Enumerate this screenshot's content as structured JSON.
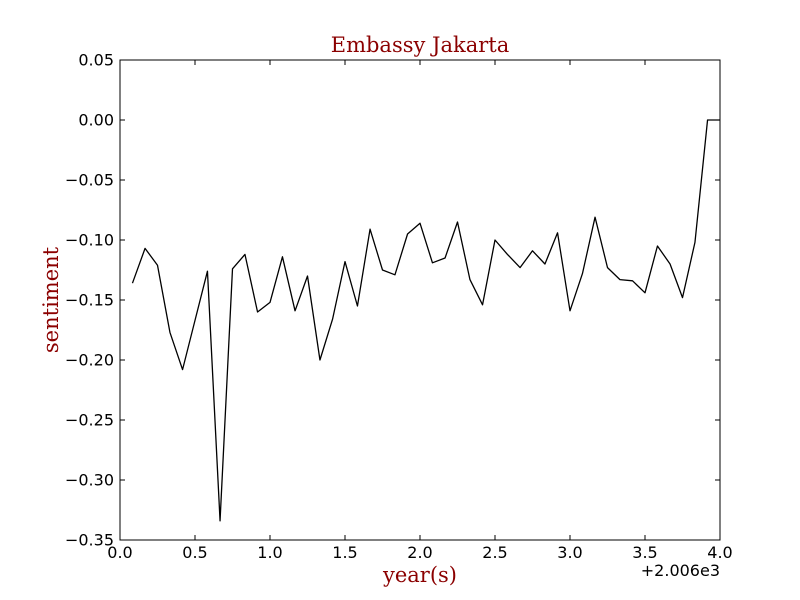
{
  "chart_data": {
    "type": "line",
    "title": "Embassy Jakarta",
    "xlabel": "year(s)",
    "ylabel": "sentiment",
    "x_offset_label": "+2.006e3",
    "xlim": [
      0.0,
      4.0
    ],
    "ylim": [
      -0.35,
      0.05
    ],
    "x_ticks": [
      0.0,
      0.5,
      1.0,
      1.5,
      2.0,
      2.5,
      3.0,
      3.5,
      4.0
    ],
    "x_tick_labels": [
      "0.0",
      "0.5",
      "1.0",
      "1.5",
      "2.0",
      "2.5",
      "3.0",
      "3.5",
      "4.0"
    ],
    "y_ticks": [
      0.05,
      0.0,
      -0.05,
      -0.1,
      -0.15,
      -0.2,
      -0.25,
      -0.3,
      -0.35
    ],
    "y_tick_labels": [
      "0.05",
      "0.00",
      "−0.05",
      "−0.10",
      "−0.15",
      "−0.20",
      "−0.25",
      "−0.30",
      "−0.35"
    ],
    "grid": false,
    "series": [
      {
        "color": "#000000",
        "x": [
          0.083,
          0.167,
          0.25,
          0.333,
          0.417,
          0.5,
          0.583,
          0.667,
          0.75,
          0.833,
          0.917,
          1.0,
          1.083,
          1.167,
          1.25,
          1.333,
          1.417,
          1.5,
          1.583,
          1.667,
          1.75,
          1.833,
          1.917,
          2.0,
          2.083,
          2.167,
          2.25,
          2.333,
          2.417,
          2.5,
          2.583,
          2.667,
          2.75,
          2.833,
          2.917,
          3.0,
          3.083,
          3.167,
          3.25,
          3.333,
          3.417,
          3.5,
          3.583,
          3.667,
          3.75,
          3.833,
          3.917,
          4.0
        ],
        "y": [
          -0.136,
          -0.107,
          -0.121,
          -0.177,
          -0.208,
          -0.167,
          -0.126,
          -0.334,
          -0.124,
          -0.112,
          -0.16,
          -0.152,
          -0.114,
          -0.159,
          -0.13,
          -0.2,
          -0.166,
          -0.118,
          -0.155,
          -0.091,
          -0.125,
          -0.129,
          -0.095,
          -0.086,
          -0.119,
          -0.115,
          -0.085,
          -0.133,
          -0.154,
          -0.1,
          -0.112,
          -0.123,
          -0.109,
          -0.12,
          -0.094,
          -0.159,
          -0.128,
          -0.081,
          -0.123,
          -0.133,
          -0.134,
          -0.144,
          -0.105,
          -0.12,
          -0.148,
          -0.102,
          0.0,
          0.0
        ]
      }
    ]
  }
}
